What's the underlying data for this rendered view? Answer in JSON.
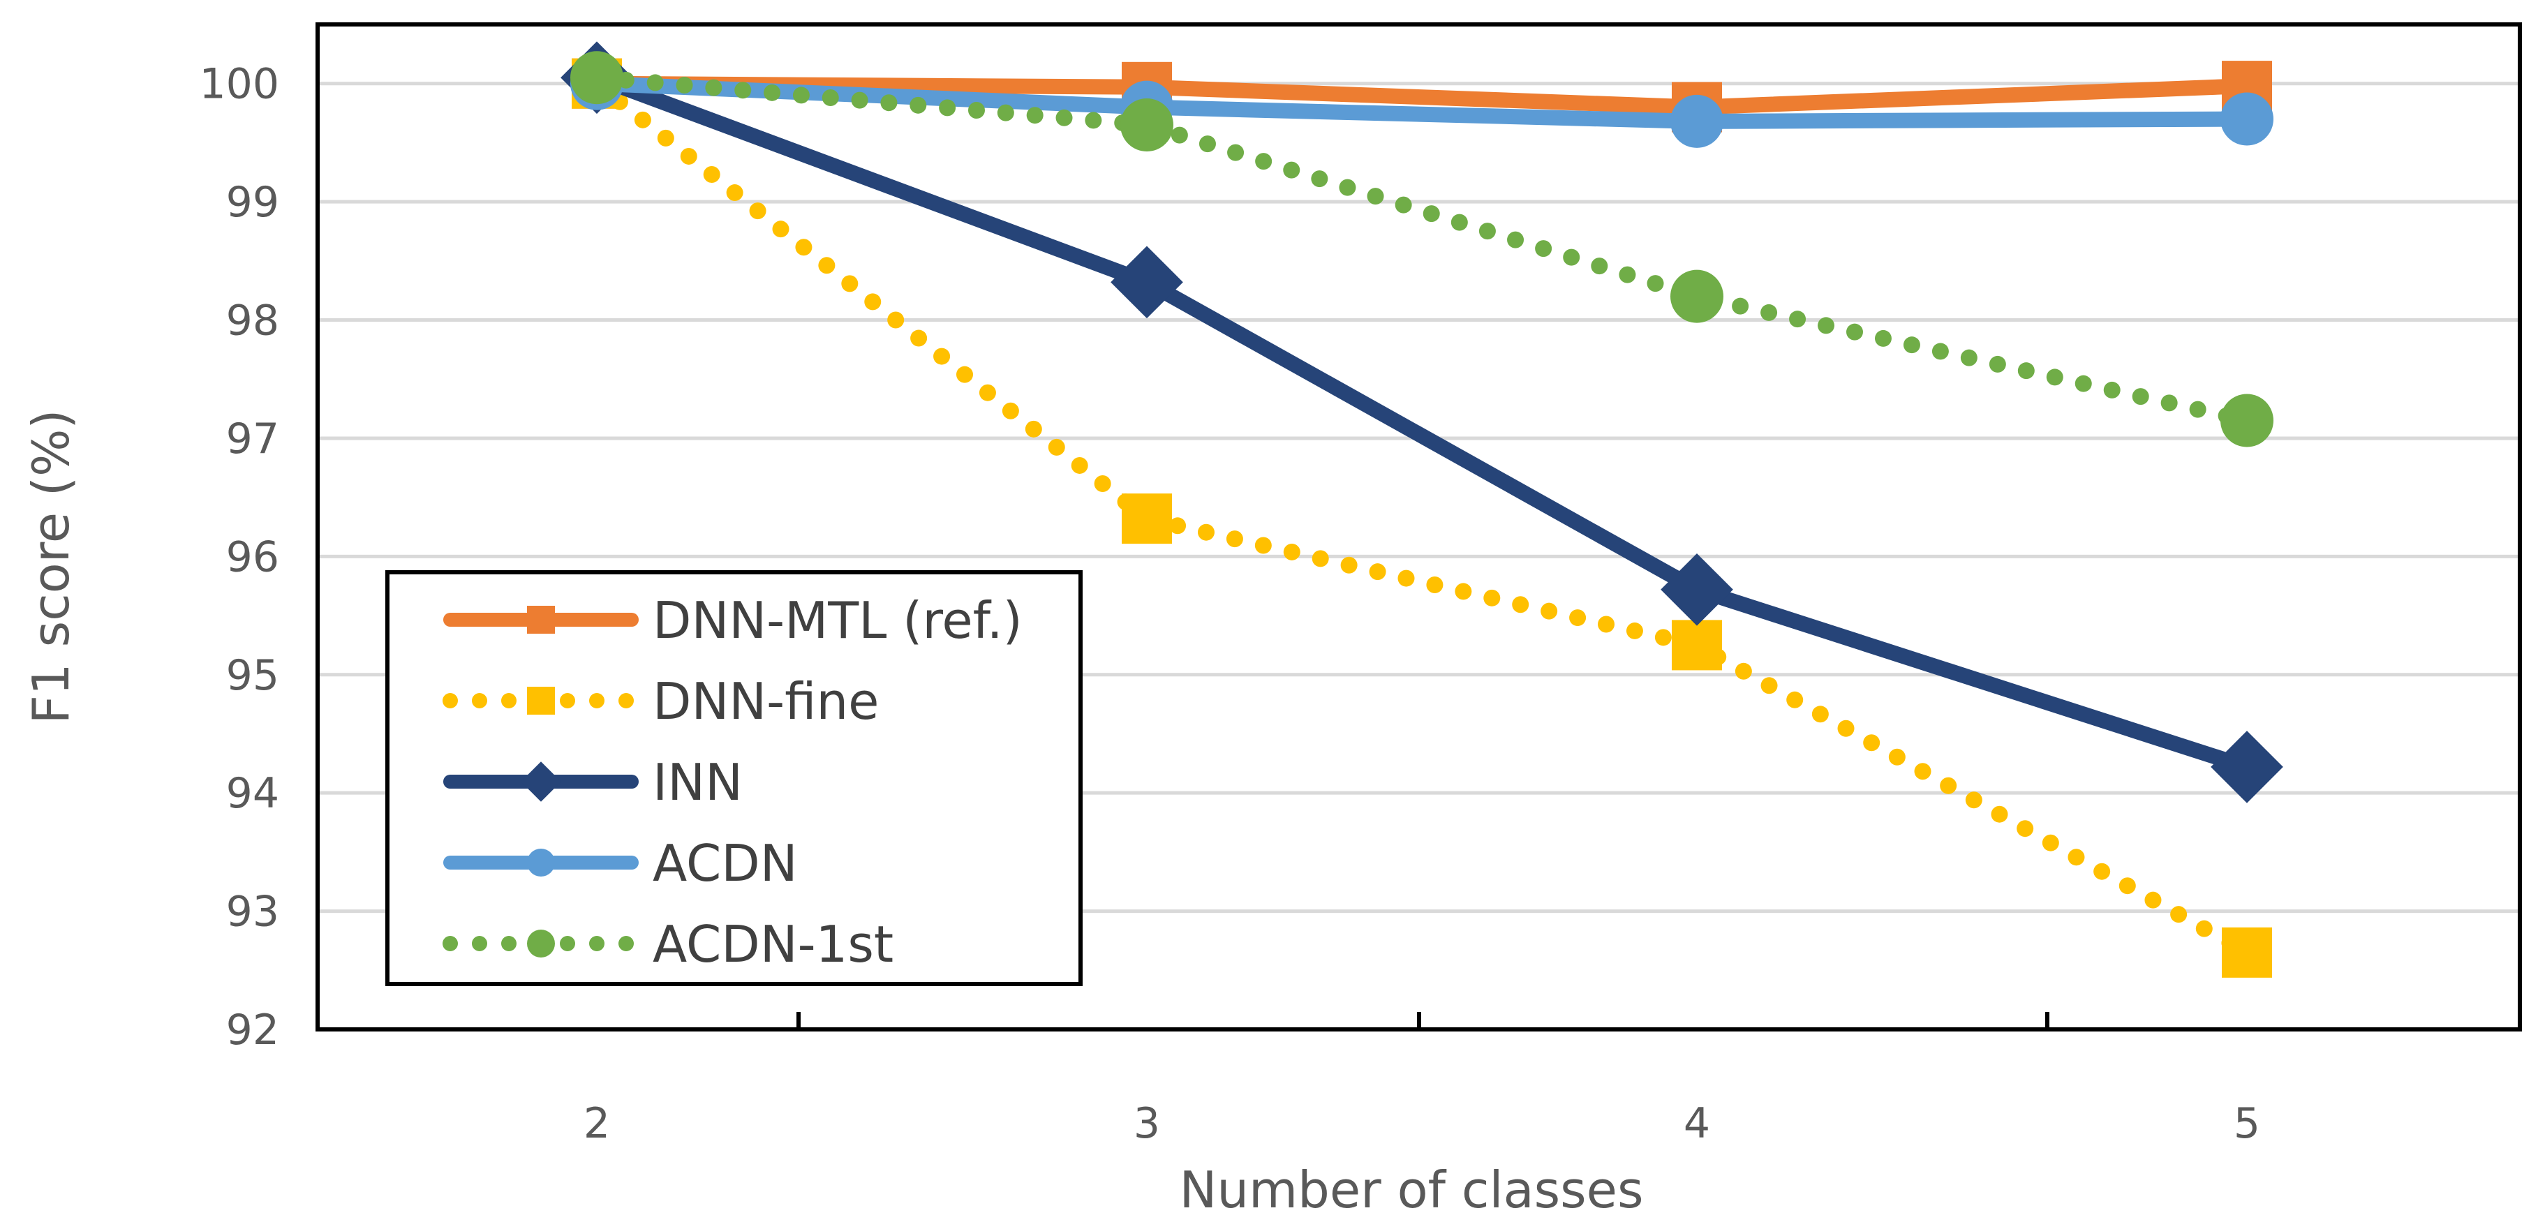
{
  "chart_data": {
    "type": "line",
    "xlabel": "Number of classes",
    "ylabel": "F1 score (%)",
    "categories": [
      "2",
      "3",
      "4",
      "5"
    ],
    "ylim": [
      92,
      100.5
    ],
    "yticks": [
      92,
      93,
      94,
      95,
      96,
      97,
      98,
      99,
      100
    ],
    "ytick_labels": [
      "92",
      "93",
      "94",
      "95",
      "96",
      "97",
      "98",
      "99",
      "100"
    ],
    "grid": "horizontal",
    "legend_position": "lower-left",
    "series": [
      {
        "key": "dnn-mtl",
        "name": "DNN-MTL (ref.)",
        "values": [
          100.0,
          99.97,
          99.8,
          99.98
        ],
        "color": "#ED7D31",
        "line": "solid",
        "marker": "square"
      },
      {
        "key": "dnn-fine",
        "name": "DNN-fine",
        "values": [
          100.0,
          96.32,
          95.25,
          92.65
        ],
        "color": "#FFC000",
        "line": "dotted",
        "marker": "square"
      },
      {
        "key": "inn",
        "name": "INN",
        "values": [
          100.05,
          98.32,
          95.72,
          94.22
        ],
        "color": "#264478",
        "line": "solid",
        "marker": "diamond"
      },
      {
        "key": "acdn",
        "name": "ACDN",
        "values": [
          100.0,
          99.8,
          99.68,
          99.7
        ],
        "color": "#5B9BD5",
        "line": "solid",
        "marker": "circle"
      },
      {
        "key": "acdn-1st",
        "name": "ACDN-1st",
        "values": [
          100.05,
          99.65,
          98.2,
          97.15
        ],
        "color": "#70AD47",
        "line": "dotted",
        "marker": "circle"
      }
    ]
  }
}
